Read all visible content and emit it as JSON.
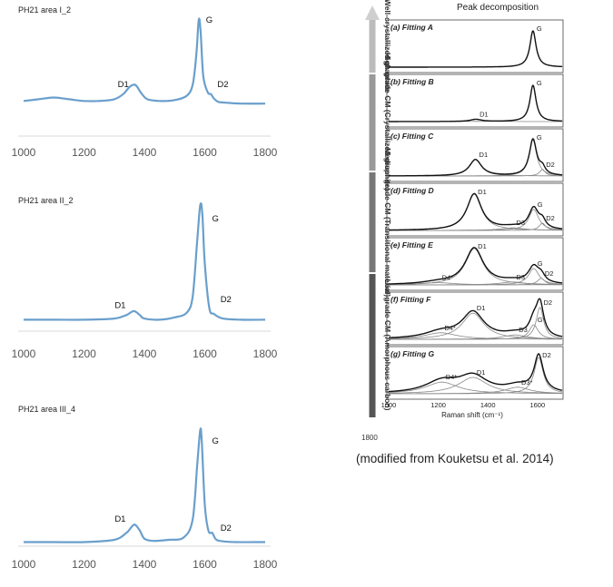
{
  "chart_data": [
    {
      "type": "line",
      "title": "PH21 area I_2",
      "xlim": [
        1000,
        1800
      ],
      "xticks": [
        1000,
        1200,
        1400,
        1600,
        1800
      ],
      "color": "#6a9fcc",
      "series": [
        {
          "x": [
            1000,
            1050,
            1100,
            1150,
            1200,
            1250,
            1300,
            1330,
            1350,
            1365,
            1375,
            1390,
            1410,
            1450,
            1500,
            1540,
            1560,
            1572,
            1580,
            1586,
            1595,
            1610,
            1620,
            1630,
            1645,
            1670,
            1720,
            1800
          ],
          "y": [
            0.06,
            0.08,
            0.1,
            0.08,
            0.06,
            0.06,
            0.08,
            0.14,
            0.22,
            0.25,
            0.23,
            0.15,
            0.08,
            0.06,
            0.07,
            0.12,
            0.25,
            0.6,
            1.0,
            0.88,
            0.35,
            0.16,
            0.14,
            0.09,
            0.05,
            0.04,
            0.03,
            0.03
          ]
        }
      ],
      "labels": [
        {
          "text": "D1",
          "x": 1330,
          "y": 0.22
        },
        {
          "text": "G",
          "x": 1615,
          "y": 0.97
        },
        {
          "text": "D2",
          "x": 1660,
          "y": 0.22
        }
      ]
    },
    {
      "type": "line",
      "title": "PH21 area II_2",
      "xlim": [
        1000,
        1800
      ],
      "xticks": [
        1000,
        1200,
        1400,
        1600,
        1800
      ],
      "color": "#6a9fcc",
      "series": [
        {
          "x": [
            1000,
            1100,
            1200,
            1300,
            1340,
            1360,
            1370,
            1385,
            1400,
            1450,
            1500,
            1540,
            1560,
            1575,
            1585,
            1592,
            1600,
            1615,
            1630,
            1660,
            1720,
            1800
          ],
          "y": [
            0.02,
            0.02,
            0.02,
            0.03,
            0.06,
            0.09,
            0.09,
            0.06,
            0.03,
            0.02,
            0.04,
            0.08,
            0.22,
            0.7,
            1.0,
            0.92,
            0.5,
            0.12,
            0.07,
            0.03,
            0.02,
            0.02
          ]
        }
      ],
      "labels": [
        {
          "text": "D1",
          "x": 1320,
          "y": 0.12
        },
        {
          "text": "G",
          "x": 1635,
          "y": 0.86
        },
        {
          "text": "D2",
          "x": 1670,
          "y": 0.17
        }
      ]
    },
    {
      "type": "line",
      "title": "PH21 area III_4",
      "xlim": [
        1000,
        1800
      ],
      "xticks": [
        1000,
        1200,
        1400,
        1600,
        1800
      ],
      "color": "#6a9fcc",
      "series": [
        {
          "x": [
            1000,
            1100,
            1200,
            1300,
            1340,
            1360,
            1370,
            1385,
            1400,
            1430,
            1480,
            1530,
            1560,
            1575,
            1585,
            1590,
            1600,
            1612,
            1625,
            1635,
            1650,
            1700,
            1800
          ],
          "y": [
            0.02,
            0.02,
            0.02,
            0.04,
            0.1,
            0.16,
            0.17,
            0.12,
            0.05,
            0.03,
            0.04,
            0.06,
            0.22,
            0.7,
            1.0,
            0.9,
            0.35,
            0.12,
            0.1,
            0.05,
            0.03,
            0.02,
            0.02
          ]
        }
      ],
      "labels": [
        {
          "text": "D1",
          "x": 1320,
          "y": 0.2
        },
        {
          "text": "G",
          "x": 1635,
          "y": 0.88
        },
        {
          "text": "D2",
          "x": 1670,
          "y": 0.12
        }
      ]
    },
    {
      "type": "line",
      "title": "Peak decomposition",
      "xlabel": "Raman shift (cm⁻¹)",
      "xlim": [
        1000,
        1800
      ],
      "xticks": [
        1000,
        1200,
        1400,
        1600
      ],
      "arrow_labels": [
        {
          "text": "Well-crystallized graphite",
          "color": "#bbbbbb"
        },
        {
          "text": "High-grade CM (Crystallized graphite)",
          "color": "#999999"
        },
        {
          "text": "Medium-grade CM (Transitional material)",
          "color": "#777777"
        },
        {
          "text": "Low-grade CM (Amorphous carbon)",
          "color": "#555555"
        }
      ],
      "arrow_bottom_label": "1800",
      "fittings": [
        {
          "label": "(a) Fitting A",
          "peaks": [
            {
              "name": "G",
              "center": 1582,
              "height": 1.0,
              "width": 15
            }
          ]
        },
        {
          "label": "(b) Fitting B",
          "peaks": [
            {
              "name": "G",
              "center": 1582,
              "height": 1.0,
              "width": 15
            },
            {
              "name": "D1",
              "center": 1352,
              "height": 0.06,
              "width": 28
            }
          ]
        },
        {
          "label": "(c) Fitting C",
          "peaks": [
            {
              "name": "G",
              "center": 1582,
              "height": 1.0,
              "width": 18
            },
            {
              "name": "D1",
              "center": 1350,
              "height": 0.45,
              "width": 30
            },
            {
              "name": "D2",
              "center": 1620,
              "height": 0.18,
              "width": 14
            }
          ]
        },
        {
          "label": "(d) Fitting D",
          "peaks": [
            {
              "name": "D1",
              "center": 1345,
              "height": 1.0,
              "width": 36
            },
            {
              "name": "G",
              "center": 1585,
              "height": 0.58,
              "width": 24
            },
            {
              "name": "D3",
              "center": 1500,
              "height": 0.07,
              "width": 60
            },
            {
              "name": "D2",
              "center": 1620,
              "height": 0.2,
              "width": 16
            }
          ]
        },
        {
          "label": "(e) Fitting E",
          "peaks": [
            {
              "name": "D1",
              "center": 1345,
              "height": 1.0,
              "width": 44
            },
            {
              "name": "D4*",
              "center": 1200,
              "height": 0.06,
              "width": 80
            },
            {
              "name": "D3",
              "center": 1500,
              "height": 0.08,
              "width": 60
            },
            {
              "name": "G",
              "center": 1585,
              "height": 0.45,
              "width": 26
            },
            {
              "name": "D2",
              "center": 1615,
              "height": 0.18,
              "width": 18
            }
          ]
        },
        {
          "label": "(f) Fitting F",
          "peaks": [
            {
              "name": "D1",
              "center": 1340,
              "height": 0.72,
              "width": 54
            },
            {
              "name": "D4*",
              "center": 1210,
              "height": 0.18,
              "width": 80
            },
            {
              "name": "D3",
              "center": 1510,
              "height": 0.12,
              "width": 60
            },
            {
              "name": "G*",
              "center": 1585,
              "height": 0.4,
              "width": 22
            },
            {
              "name": "D2",
              "center": 1610,
              "height": 0.88,
              "width": 18
            }
          ]
        },
        {
          "label": "(g) Fitting G",
          "peaks": [
            {
              "name": "D1",
              "center": 1340,
              "height": 0.45,
              "width": 70
            },
            {
              "name": "D4*",
              "center": 1215,
              "height": 0.32,
              "width": 80
            },
            {
              "name": "D3*",
              "center": 1520,
              "height": 0.18,
              "width": 60
            },
            {
              "name": "D2",
              "center": 1605,
              "height": 1.0,
              "width": 22
            }
          ]
        }
      ]
    }
  ],
  "caption": "(modified from Kouketsu et al. 2014)"
}
